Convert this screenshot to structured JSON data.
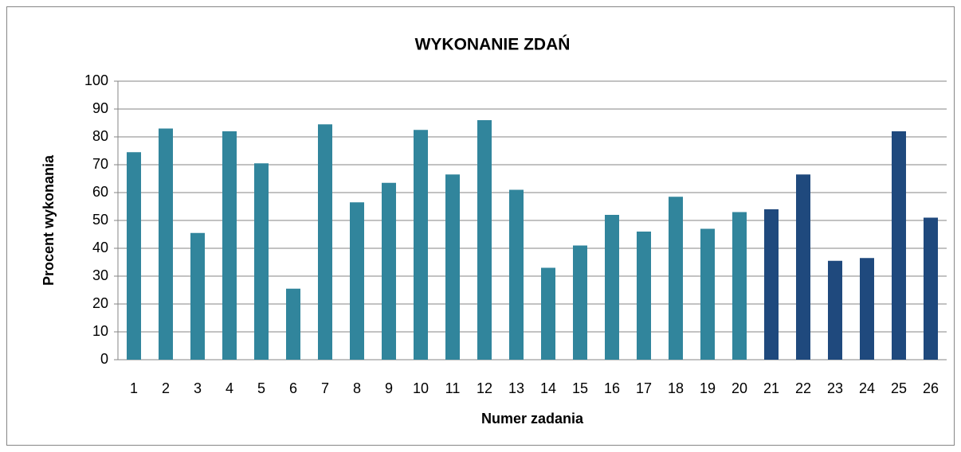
{
  "chart_data": {
    "type": "bar",
    "title": "WYKONANIE ZDAŃ",
    "x_label": "Numer zadania",
    "y_label": "Procent wykonania",
    "categories": [
      "1",
      "2",
      "3",
      "4",
      "5",
      "6",
      "7",
      "8",
      "9",
      "10",
      "11",
      "12",
      "13",
      "14",
      "15",
      "16",
      "17",
      "18",
      "19",
      "20",
      "21",
      "22",
      "23",
      "24",
      "25",
      "26"
    ],
    "values": [
      74.5,
      83,
      45.5,
      82,
      70.5,
      25.5,
      84.5,
      56.5,
      63.5,
      82.5,
      66.5,
      86,
      61,
      33,
      41,
      52,
      46,
      58.5,
      47,
      53,
      54,
      66.5,
      35.5,
      36.5,
      82,
      51
    ],
    "colors": [
      "#31859c",
      "#31859c",
      "#31859c",
      "#31859c",
      "#31859c",
      "#31859c",
      "#31859c",
      "#31859c",
      "#31859c",
      "#31859c",
      "#31859c",
      "#31859c",
      "#31859c",
      "#31859c",
      "#31859c",
      "#31859c",
      "#31859c",
      "#31859c",
      "#31859c",
      "#31859c",
      "#1f497d",
      "#1f497d",
      "#1f497d",
      "#1f497d",
      "#1f497d",
      "#1f497d"
    ],
    "ylim": [
      0,
      100
    ],
    "yticks": [
      0,
      10,
      20,
      30,
      40,
      50,
      60,
      70,
      80,
      90,
      100
    ],
    "grid": true
  }
}
